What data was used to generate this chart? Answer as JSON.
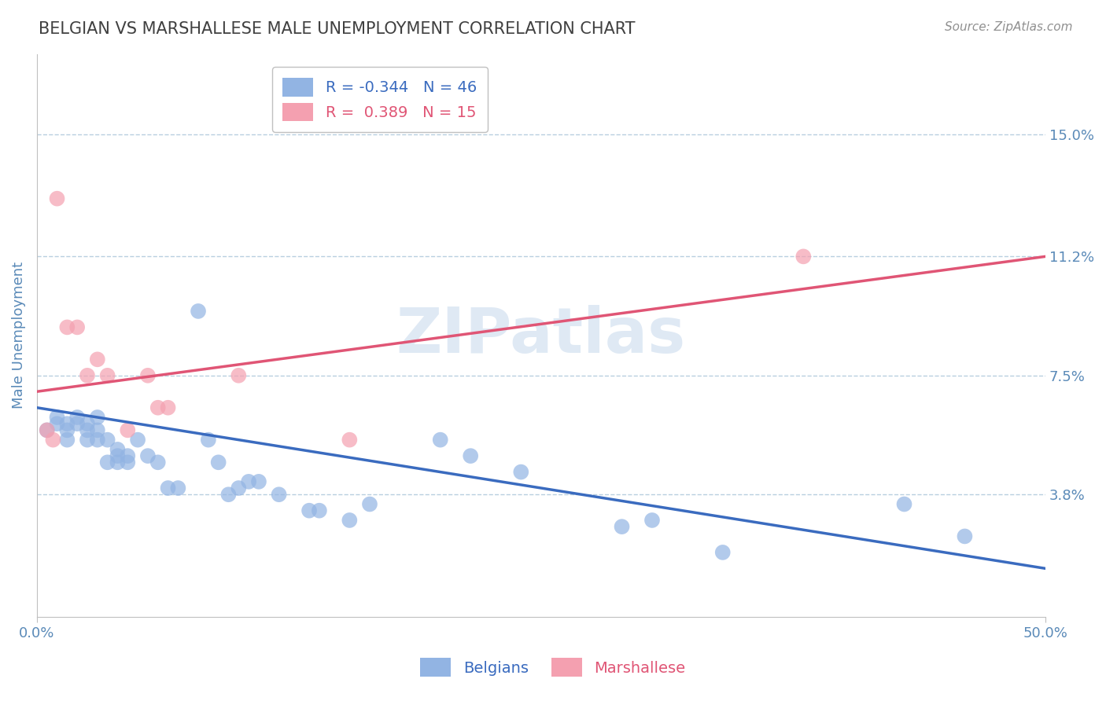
{
  "title": "BELGIAN VS MARSHALLESE MALE UNEMPLOYMENT CORRELATION CHART",
  "source": "Source: ZipAtlas.com",
  "ylabel": "Male Unemployment",
  "xlabel": "",
  "xlim": [
    0.0,
    0.5
  ],
  "ylim": [
    0.0,
    0.175
  ],
  "yticks": [
    0.038,
    0.075,
    0.112,
    0.15
  ],
  "ytick_labels": [
    "3.8%",
    "7.5%",
    "11.2%",
    "15.0%"
  ],
  "xtick_labels": [
    "0.0%",
    "50.0%"
  ],
  "xticks": [
    0.0,
    0.5
  ],
  "belgian_color": "#92b4e3",
  "marshallese_color": "#f4a0b0",
  "belgian_line_color": "#3a6bbf",
  "marshallese_line_color": "#e05575",
  "belgian_R": -0.344,
  "belgian_N": 46,
  "marshallese_R": 0.389,
  "marshallese_N": 15,
  "watermark": "ZIPatlas",
  "watermark_color": "#b8cfe8",
  "belgian_x": [
    0.005,
    0.01,
    0.01,
    0.015,
    0.015,
    0.015,
    0.02,
    0.02,
    0.025,
    0.025,
    0.025,
    0.03,
    0.03,
    0.03,
    0.035,
    0.035,
    0.04,
    0.04,
    0.04,
    0.045,
    0.045,
    0.05,
    0.055,
    0.06,
    0.065,
    0.07,
    0.08,
    0.085,
    0.09,
    0.095,
    0.1,
    0.105,
    0.11,
    0.12,
    0.135,
    0.14,
    0.155,
    0.165,
    0.2,
    0.215,
    0.24,
    0.29,
    0.305,
    0.34,
    0.43,
    0.46
  ],
  "belgian_y": [
    0.058,
    0.062,
    0.06,
    0.058,
    0.055,
    0.06,
    0.062,
    0.06,
    0.055,
    0.058,
    0.06,
    0.062,
    0.055,
    0.058,
    0.048,
    0.055,
    0.05,
    0.052,
    0.048,
    0.048,
    0.05,
    0.055,
    0.05,
    0.048,
    0.04,
    0.04,
    0.095,
    0.055,
    0.048,
    0.038,
    0.04,
    0.042,
    0.042,
    0.038,
    0.033,
    0.033,
    0.03,
    0.035,
    0.055,
    0.05,
    0.045,
    0.028,
    0.03,
    0.02,
    0.035,
    0.025
  ],
  "marshallese_x": [
    0.005,
    0.008,
    0.01,
    0.015,
    0.02,
    0.025,
    0.03,
    0.035,
    0.045,
    0.055,
    0.06,
    0.065,
    0.1,
    0.155,
    0.38
  ],
  "marshallese_y": [
    0.058,
    0.055,
    0.13,
    0.09,
    0.09,
    0.075,
    0.08,
    0.075,
    0.058,
    0.075,
    0.065,
    0.065,
    0.075,
    0.055,
    0.112
  ],
  "blue_line_x": [
    0.0,
    0.5
  ],
  "blue_line_y": [
    0.065,
    0.015
  ],
  "pink_line_x": [
    0.0,
    0.5
  ],
  "pink_line_y": [
    0.07,
    0.112
  ],
  "background_color": "#ffffff",
  "grid_color": "#b8cfe0",
  "title_color": "#404040",
  "axis_label_color": "#5a8ab8",
  "tick_label_color": "#5a8ab8",
  "legend_bg": "#ffffff",
  "legend_border": "#c0c0c0"
}
